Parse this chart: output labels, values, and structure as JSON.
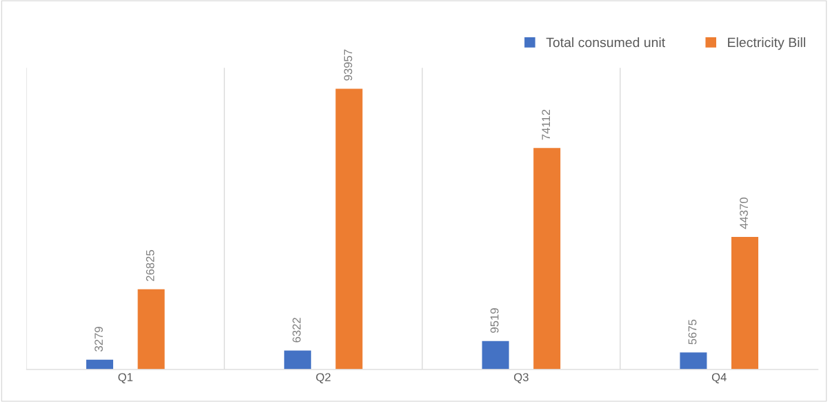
{
  "chart_data": {
    "type": "bar",
    "categories": [
      "Q1",
      "Q2",
      "Q3",
      "Q4"
    ],
    "series": [
      {
        "name": "Total consumed unit",
        "color": "#4472c4",
        "values": [
          3279,
          6322,
          9519,
          5675
        ]
      },
      {
        "name": "Electricity Bill",
        "color": "#ed7d31",
        "values": [
          26825,
          93957,
          74112,
          44370
        ]
      }
    ],
    "data_labels": true,
    "grid": "x",
    "legend": "top right",
    "tick_labels": "x"
  }
}
